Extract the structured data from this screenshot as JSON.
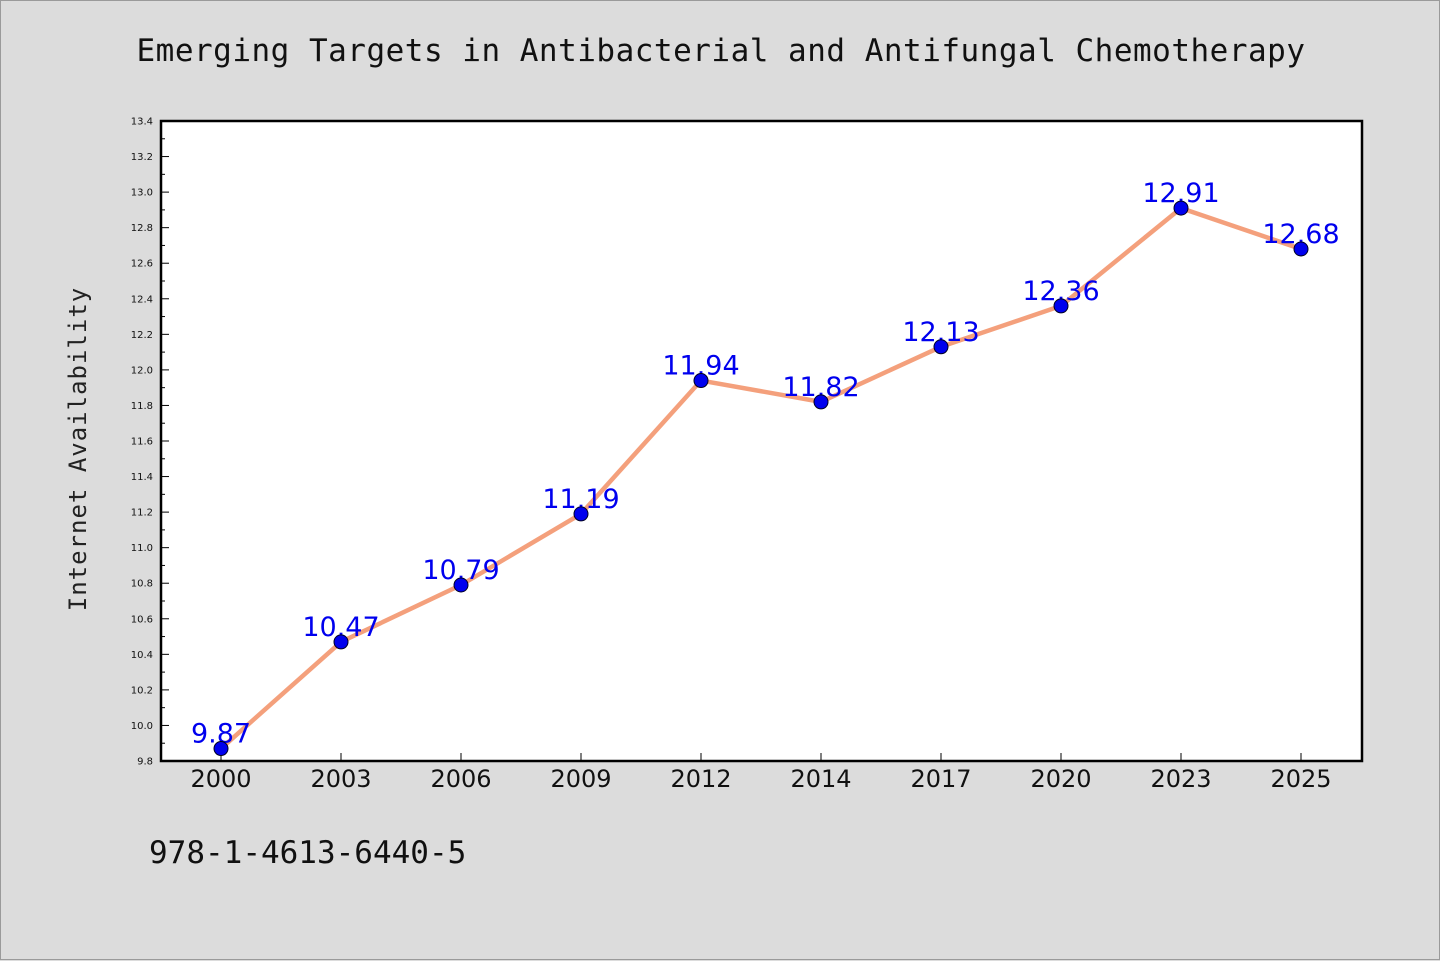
{
  "chart_data": {
    "type": "line",
    "title": "Emerging Targets in Antibacterial and Antifungal Chemotherapy",
    "xlabel": "",
    "ylabel": "Internet Availability",
    "categories": [
      "2000",
      "2003",
      "2006",
      "2009",
      "2012",
      "2014",
      "2017",
      "2020",
      "2023",
      "2025"
    ],
    "series": [
      {
        "values": [
          9.87,
          10.47,
          10.79,
          11.19,
          11.94,
          11.82,
          12.13,
          12.36,
          12.91,
          12.68
        ]
      }
    ],
    "data_labels": [
      "9.87",
      "10.47",
      "10.79",
      "11.19",
      "11.94",
      "11.82",
      "12.13",
      "12.36",
      "12.91",
      "12.68"
    ],
    "ylim": [
      9.8,
      13.4
    ],
    "yticks": [
      "9.8",
      "10.0",
      "10.2",
      "10.4",
      "10.6",
      "10.8",
      "11.0",
      "11.2",
      "11.4",
      "11.6",
      "11.8",
      "12.0",
      "12.2",
      "12.4",
      "12.6",
      "12.8",
      "13.0",
      "13.2",
      "13.4"
    ],
    "grid": false,
    "legend": "none",
    "colors": {
      "line": "#f4a07c",
      "marker": "#0000ee",
      "label": "#0000ee",
      "background": "#dcdcdc",
      "plot_bg": "#ffffff"
    }
  },
  "footer": {
    "isbn": "978-1-4613-6440-5"
  }
}
